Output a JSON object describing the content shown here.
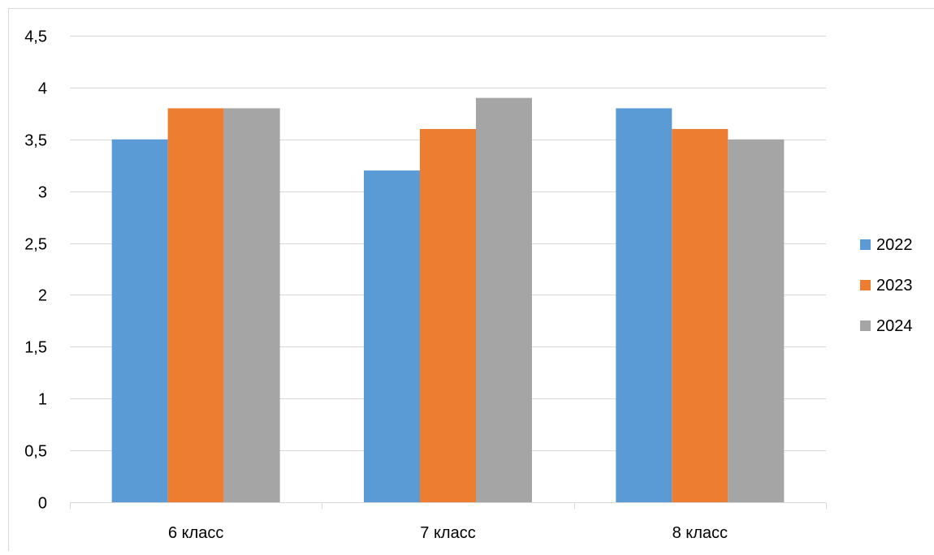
{
  "chart_data": {
    "type": "bar",
    "categories": [
      "6 класс",
      "7 класс",
      "8 класс"
    ],
    "series": [
      {
        "name": "2022",
        "values": [
          3.5,
          3.2,
          3.8
        ],
        "color": "#5B9BD5"
      },
      {
        "name": "2023",
        "values": [
          3.8,
          3.6,
          3.6
        ],
        "color": "#ED7D31"
      },
      {
        "name": "2024",
        "values": [
          3.8,
          3.9,
          3.5
        ],
        "color": "#A5A5A5"
      }
    ],
    "y_ticks": [
      "0",
      "0,5",
      "1",
      "1,5",
      "2",
      "2,5",
      "3",
      "3,5",
      "4",
      "4,5"
    ],
    "ylim": [
      0,
      4.5
    ],
    "grid": true,
    "legend_position": "right",
    "title": "",
    "xlabel": "",
    "ylabel": ""
  }
}
